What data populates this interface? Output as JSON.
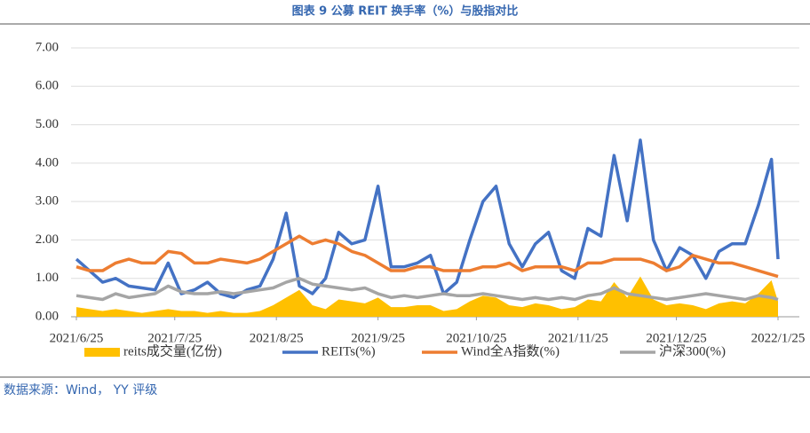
{
  "chart_data": {
    "type": "line",
    "title": "图表 9 公募 REIT 换手率（%）与股指对比",
    "x": [
      "2021/6/25",
      "2021/6/29",
      "2021/7/3",
      "2021/7/7",
      "2021/7/11",
      "2021/7/15",
      "2021/7/19",
      "2021/7/23",
      "2021/7/27",
      "2021/7/31",
      "2021/8/4",
      "2021/8/8",
      "2021/8/12",
      "2021/8/16",
      "2021/8/20",
      "2021/8/24",
      "2021/8/28",
      "2021/9/1",
      "2021/9/5",
      "2021/9/9",
      "2021/9/13",
      "2021/9/17",
      "2021/9/21",
      "2021/9/25",
      "2021/9/29",
      "2021/10/3",
      "2021/10/7",
      "2021/10/11",
      "2021/10/15",
      "2021/10/19",
      "2021/10/23",
      "2021/10/27",
      "2021/10/31",
      "2021/11/4",
      "2021/11/8",
      "2021/11/12",
      "2021/11/16",
      "2021/11/20",
      "2021/11/24",
      "2021/11/28",
      "2021/12/2",
      "2021/12/6",
      "2021/12/10",
      "2021/12/14",
      "2021/12/18",
      "2021/12/22",
      "2021/12/26",
      "2021/12/30",
      "2022/1/3",
      "2022/1/7",
      "2022/1/11",
      "2022/1/15",
      "2022/1/19",
      "2022/1/23",
      "2022/1/25"
    ],
    "series": [
      {
        "name": "reits成交量(亿份)",
        "kind": "area",
        "color": "#ffc000",
        "values": [
          0.25,
          0.2,
          0.15,
          0.2,
          0.15,
          0.1,
          0.15,
          0.2,
          0.15,
          0.15,
          0.1,
          0.15,
          0.1,
          0.1,
          0.15,
          0.3,
          0.5,
          0.7,
          0.3,
          0.2,
          0.45,
          0.4,
          0.35,
          0.5,
          0.25,
          0.25,
          0.3,
          0.3,
          0.15,
          0.2,
          0.4,
          0.55,
          0.5,
          0.3,
          0.25,
          0.35,
          0.3,
          0.2,
          0.25,
          0.45,
          0.4,
          0.9,
          0.5,
          1.05,
          0.45,
          0.3,
          0.35,
          0.3,
          0.2,
          0.35,
          0.4,
          0.35,
          0.6,
          0.95,
          0.4
        ]
      },
      {
        "name": "REITs(%)",
        "kind": "line",
        "color": "#4472c4",
        "values": [
          1.5,
          1.2,
          0.9,
          1.0,
          0.8,
          0.75,
          0.7,
          1.4,
          0.6,
          0.7,
          0.9,
          0.6,
          0.5,
          0.7,
          0.8,
          1.5,
          2.7,
          0.8,
          0.6,
          1.0,
          2.2,
          1.9,
          2.0,
          3.4,
          1.3,
          1.3,
          1.4,
          1.6,
          0.6,
          0.9,
          2.0,
          3.0,
          3.4,
          1.9,
          1.3,
          1.9,
          2.2,
          1.2,
          1.0,
          2.3,
          2.1,
          4.2,
          2.5,
          4.6,
          2.0,
          1.2,
          1.8,
          1.6,
          1.0,
          1.7,
          1.9,
          1.9,
          2.9,
          4.1,
          1.5
        ]
      },
      {
        "name": "Wind全A指数(%)",
        "kind": "line",
        "color": "#ed7d31",
        "values": [
          1.3,
          1.2,
          1.2,
          1.4,
          1.5,
          1.4,
          1.4,
          1.7,
          1.65,
          1.4,
          1.4,
          1.5,
          1.45,
          1.4,
          1.5,
          1.7,
          1.9,
          2.1,
          1.9,
          2.0,
          1.9,
          1.7,
          1.6,
          1.4,
          1.2,
          1.2,
          1.3,
          1.3,
          1.2,
          1.2,
          1.2,
          1.3,
          1.3,
          1.4,
          1.2,
          1.3,
          1.3,
          1.3,
          1.2,
          1.4,
          1.4,
          1.5,
          1.5,
          1.5,
          1.4,
          1.2,
          1.3,
          1.6,
          1.5,
          1.4,
          1.4,
          1.3,
          1.2,
          1.1,
          1.05
        ]
      },
      {
        "name": "沪深300(%)",
        "kind": "line",
        "color": "#a5a5a5",
        "values": [
          0.55,
          0.5,
          0.45,
          0.6,
          0.5,
          0.55,
          0.6,
          0.8,
          0.65,
          0.6,
          0.6,
          0.65,
          0.6,
          0.65,
          0.7,
          0.75,
          0.9,
          1.0,
          0.85,
          0.8,
          0.75,
          0.7,
          0.75,
          0.6,
          0.5,
          0.55,
          0.5,
          0.55,
          0.6,
          0.55,
          0.55,
          0.6,
          0.55,
          0.5,
          0.45,
          0.5,
          0.45,
          0.5,
          0.45,
          0.55,
          0.6,
          0.75,
          0.6,
          0.55,
          0.5,
          0.45,
          0.5,
          0.55,
          0.6,
          0.55,
          0.5,
          0.45,
          0.55,
          0.5,
          0.45
        ]
      }
    ],
    "xlim": [
      "2021/6/25",
      "2022/1/25"
    ],
    "xticks": [
      "2021/6/25",
      "2021/7/25",
      "2021/8/25",
      "2021/9/25",
      "2021/10/25",
      "2021/11/25",
      "2021/12/25",
      "2022/1/25"
    ],
    "ylim": [
      0,
      7
    ],
    "yticks": [
      {
        "value": 0,
        "label": "0.00"
      },
      {
        "value": 1,
        "label": "1.00"
      },
      {
        "value": 2,
        "label": "2.00"
      },
      {
        "value": 3,
        "label": "3.00"
      },
      {
        "value": 4,
        "label": "4.00"
      },
      {
        "value": 5,
        "label": "5.00"
      },
      {
        "value": 6,
        "label": "6.00"
      },
      {
        "value": 7,
        "label": "7.00"
      }
    ],
    "grid": true,
    "legend": "bottom"
  },
  "source": "数据来源：Wind， YY 评级"
}
